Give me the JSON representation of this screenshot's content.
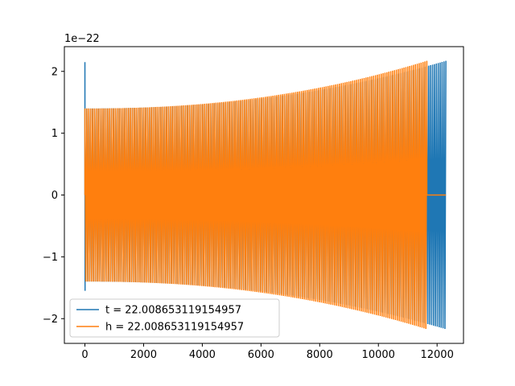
{
  "chart_data": {
    "type": "line",
    "title": "",
    "xlabel": "",
    "ylabel": "",
    "y_offset_text": "1e−22",
    "xlim": [
      -700,
      12900
    ],
    "ylim": [
      -2.4,
      2.4
    ],
    "x_ticks": [
      0,
      2000,
      4000,
      6000,
      8000,
      10000,
      12000
    ],
    "x_tick_labels": [
      "0",
      "2000",
      "4000",
      "6000",
      "8000",
      "10000",
      "12000"
    ],
    "y_ticks": [
      -2,
      -1,
      0,
      1,
      2
    ],
    "y_tick_labels": [
      "−2",
      "−1",
      "0",
      "1",
      "2"
    ],
    "grid": false,
    "legend_position": "lower-left",
    "series": [
      {
        "name": "t = 22.008653119154957",
        "color": "#1f77b4",
        "x_start": 0,
        "x_end": 12300,
        "amplitude_start": 1.4,
        "amplitude_end": 2.17,
        "initial_spike": {
          "x": 0,
          "y_max": 2.15,
          "y_min": -1.55
        },
        "cycles": 190
      },
      {
        "name": "h = 22.008653119154957",
        "color": "#ff7f0e",
        "x_start": 0,
        "x_end": 11650,
        "amplitude_start": 1.4,
        "amplitude_end": 2.17,
        "flat_segments": [
          [
            0,
            600
          ],
          [
            11650,
            12300
          ]
        ],
        "cycles": 180
      }
    ]
  }
}
